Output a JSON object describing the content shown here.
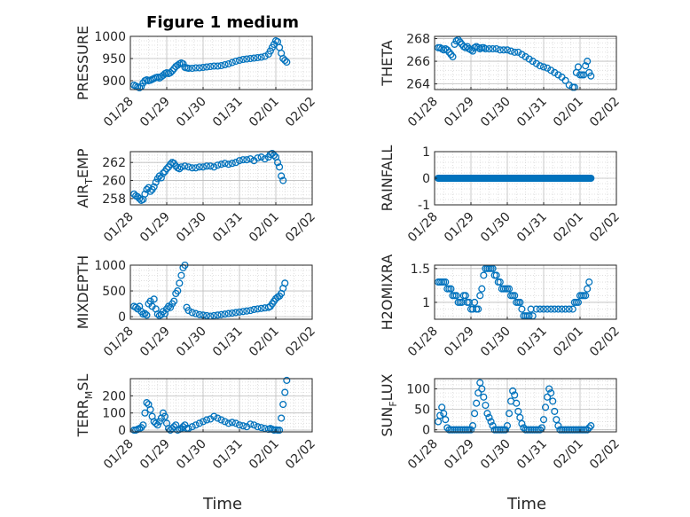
{
  "figure": {
    "title": "Figure 1 medium",
    "xlabel": "Time"
  },
  "colors": {
    "marker": "#0072BD",
    "axis": "#262626",
    "grid": "#d9d9d9",
    "background": "#ffffff"
  },
  "chart_data": [
    {
      "type": "scatter",
      "ylabel": "PRESSURE",
      "yticks": [
        900,
        950,
        1000
      ],
      "ylim": [
        880,
        1000
      ],
      "xticks": [
        "01/28",
        "01/29",
        "01/30",
        "01/31",
        "02/01",
        "02/02"
      ],
      "xlim_days": [
        0,
        5
      ],
      "x": [
        0.1,
        0.15,
        0.2,
        0.25,
        0.3,
        0.35,
        0.4,
        0.45,
        0.5,
        0.55,
        0.6,
        0.65,
        0.7,
        0.75,
        0.8,
        0.85,
        0.9,
        0.95,
        1.0,
        1.05,
        1.1,
        1.15,
        1.2,
        1.25,
        1.3,
        1.35,
        1.4,
        1.45,
        1.5,
        1.55,
        1.6,
        1.7,
        1.8,
        1.9,
        2.0,
        2.1,
        2.2,
        2.3,
        2.4,
        2.5,
        2.6,
        2.7,
        2.8,
        2.9,
        3.0,
        3.1,
        3.2,
        3.3,
        3.4,
        3.5,
        3.6,
        3.7,
        3.8,
        3.85,
        3.9,
        3.95,
        4.0,
        4.05,
        4.1,
        4.15,
        4.2,
        4.25,
        4.3
      ],
      "y": [
        890,
        888,
        886,
        884,
        887,
        895,
        900,
        902,
        900,
        901,
        903,
        905,
        907,
        908,
        906,
        909,
        912,
        916,
        918,
        916,
        918,
        922,
        927,
        932,
        935,
        938,
        940,
        938,
        930,
        929,
        928,
        928,
        929,
        929,
        930,
        931,
        932,
        933,
        933,
        934,
        936,
        938,
        941,
        944,
        946,
        948,
        949,
        950,
        951,
        952,
        953,
        955,
        960,
        967,
        975,
        982,
        990,
        988,
        975,
        962,
        950,
        946,
        942
      ]
    },
    {
      "type": "scatter",
      "ylabel": "THETA",
      "yticks": [
        264,
        266,
        268
      ],
      "ylim": [
        263.5,
        268.2
      ],
      "xticks": [
        "01/28",
        "01/29",
        "01/30",
        "01/31",
        "02/01",
        "02/02"
      ],
      "xlim_days": [
        0,
        5
      ],
      "x": [
        0.1,
        0.15,
        0.2,
        0.25,
        0.3,
        0.35,
        0.4,
        0.45,
        0.5,
        0.55,
        0.6,
        0.65,
        0.7,
        0.75,
        0.8,
        0.85,
        0.9,
        0.95,
        1.0,
        1.05,
        1.1,
        1.15,
        1.2,
        1.25,
        1.3,
        1.35,
        1.4,
        1.5,
        1.6,
        1.7,
        1.8,
        1.9,
        2.0,
        2.1,
        2.2,
        2.3,
        2.4,
        2.5,
        2.6,
        2.7,
        2.8,
        2.9,
        3.0,
        3.1,
        3.2,
        3.3,
        3.4,
        3.5,
        3.6,
        3.7,
        3.8,
        3.85,
        3.9,
        3.95,
        4.0,
        4.05,
        4.1,
        4.15,
        4.2,
        4.25,
        4.3
      ],
      "y": [
        267.2,
        267.2,
        267.1,
        267.0,
        267.1,
        267.0,
        266.8,
        266.6,
        266.4,
        267.5,
        267.8,
        267.9,
        267.7,
        267.5,
        267.3,
        267.2,
        267.3,
        267.1,
        267.0,
        266.9,
        267.2,
        267.3,
        267.2,
        267.1,
        267.2,
        267.2,
        267.1,
        267.1,
        267.1,
        267.1,
        267.0,
        267.0,
        267.0,
        266.9,
        266.8,
        266.8,
        266.6,
        266.4,
        266.2,
        266.0,
        265.8,
        265.6,
        265.5,
        265.4,
        265.2,
        265.0,
        264.8,
        264.6,
        264.3,
        263.9,
        263.7,
        263.7,
        265.0,
        265.5,
        264.8,
        264.8,
        264.8,
        265.6,
        266.0,
        265.0,
        264.7
      ]
    },
    {
      "type": "scatter",
      "ylabel": "AIR_TEMP",
      "ylabel_parts": [
        "AIR",
        "T",
        "EMP"
      ],
      "yticks": [
        258,
        260,
        262
      ],
      "ylim": [
        257.3,
        263.2
      ],
      "xticks": [
        "01/28",
        "01/29",
        "01/30",
        "01/31",
        "02/01",
        "02/02"
      ],
      "xlim_days": [
        0,
        5
      ],
      "x": [
        0.1,
        0.15,
        0.2,
        0.25,
        0.3,
        0.35,
        0.4,
        0.45,
        0.5,
        0.55,
        0.6,
        0.65,
        0.7,
        0.75,
        0.8,
        0.85,
        0.9,
        0.95,
        1.0,
        1.05,
        1.1,
        1.15,
        1.2,
        1.25,
        1.3,
        1.35,
        1.4,
        1.5,
        1.6,
        1.7,
        1.8,
        1.9,
        2.0,
        2.1,
        2.2,
        2.3,
        2.4,
        2.5,
        2.6,
        2.7,
        2.8,
        2.9,
        3.0,
        3.1,
        3.2,
        3.3,
        3.4,
        3.5,
        3.6,
        3.7,
        3.8,
        3.85,
        3.9,
        3.95,
        4.0,
        4.05,
        4.1,
        4.15,
        4.2
      ],
      "y": [
        258.5,
        258.3,
        258.2,
        258.0,
        257.8,
        257.9,
        258.5,
        259.0,
        259.2,
        258.8,
        259.0,
        259.3,
        259.8,
        260.2,
        260.5,
        260.3,
        260.8,
        261.0,
        261.3,
        261.5,
        261.8,
        262.0,
        261.9,
        261.6,
        261.4,
        261.3,
        261.5,
        261.6,
        261.5,
        261.4,
        261.4,
        261.5,
        261.5,
        261.6,
        261.6,
        261.5,
        261.7,
        261.8,
        261.9,
        261.8,
        261.9,
        262.0,
        262.2,
        262.3,
        262.3,
        262.4,
        262.2,
        262.5,
        262.6,
        262.4,
        262.6,
        262.9,
        263.0,
        262.8,
        262.6,
        262.0,
        261.5,
        260.5,
        260.0
      ]
    },
    {
      "type": "scatter",
      "ylabel": "RAINFALL",
      "yticks": [
        -1,
        0,
        1
      ],
      "ylim": [
        -1,
        1
      ],
      "xticks": [
        "01/28",
        "01/29",
        "01/30",
        "01/31",
        "02/01",
        "02/02"
      ],
      "xlim_days": [
        0,
        5
      ],
      "x_range": [
        0.1,
        4.3
      ],
      "constant": 0
    },
    {
      "type": "scatter",
      "ylabel": "MIXDEPTH",
      "yticks": [
        0,
        500,
        1000
      ],
      "ylim": [
        -50,
        1000
      ],
      "xticks": [
        "01/28",
        "01/29",
        "01/30",
        "01/31",
        "02/01",
        "02/02"
      ],
      "xlim_days": [
        0,
        5
      ],
      "x": [
        0.1,
        0.15,
        0.2,
        0.25,
        0.3,
        0.35,
        0.4,
        0.45,
        0.5,
        0.55,
        0.6,
        0.65,
        0.7,
        0.75,
        0.8,
        0.85,
        0.9,
        0.95,
        1.0,
        1.05,
        1.1,
        1.15,
        1.2,
        1.25,
        1.3,
        1.35,
        1.4,
        1.45,
        1.5,
        1.55,
        1.6,
        1.7,
        1.8,
        1.9,
        2.0,
        2.1,
        2.2,
        2.3,
        2.4,
        2.5,
        2.6,
        2.7,
        2.8,
        2.9,
        3.0,
        3.1,
        3.2,
        3.3,
        3.4,
        3.5,
        3.6,
        3.7,
        3.8,
        3.85,
        3.9,
        3.95,
        4.0,
        4.05,
        4.1,
        4.15,
        4.2,
        4.25
      ],
      "y": [
        200,
        180,
        150,
        200,
        100,
        50,
        60,
        30,
        250,
        300,
        200,
        340,
        150,
        50,
        20,
        40,
        100,
        60,
        150,
        200,
        180,
        250,
        300,
        450,
        500,
        650,
        800,
        950,
        1000,
        180,
        120,
        80,
        60,
        40,
        30,
        20,
        10,
        20,
        30,
        40,
        50,
        60,
        70,
        80,
        90,
        100,
        110,
        120,
        140,
        150,
        160,
        170,
        180,
        200,
        250,
        300,
        350,
        380,
        400,
        450,
        550,
        650
      ]
    },
    {
      "type": "scatter",
      "ylabel": "H2OMIXRA",
      "yticks": [
        1,
        1.5
      ],
      "ylim": [
        0.75,
        1.55
      ],
      "xticks": [
        "01/28",
        "01/29",
        "01/30",
        "01/31",
        "02/01",
        "02/02"
      ],
      "xlim_days": [
        0,
        5
      ],
      "x": [
        0.1,
        0.15,
        0.2,
        0.25,
        0.3,
        0.35,
        0.4,
        0.45,
        0.5,
        0.55,
        0.6,
        0.65,
        0.7,
        0.75,
        0.8,
        0.85,
        0.9,
        0.95,
        1.0,
        1.05,
        1.1,
        1.15,
        1.2,
        1.25,
        1.3,
        1.35,
        1.4,
        1.45,
        1.5,
        1.55,
        1.6,
        1.65,
        1.7,
        1.75,
        1.8,
        1.85,
        1.9,
        1.95,
        2.0,
        2.05,
        2.1,
        2.15,
        2.2,
        2.25,
        2.3,
        2.35,
        2.4,
        2.45,
        2.5,
        2.55,
        2.6,
        2.65,
        2.7,
        2.8,
        2.9,
        3.0,
        3.1,
        3.2,
        3.3,
        3.4,
        3.5,
        3.6,
        3.7,
        3.8,
        3.85,
        3.9,
        3.95,
        4.0,
        4.05,
        4.1,
        4.15,
        4.2,
        4.25
      ],
      "y": [
        1.3,
        1.3,
        1.3,
        1.3,
        1.3,
        1.2,
        1.2,
        1.2,
        1.1,
        1.1,
        1.1,
        1.0,
        1.0,
        1.0,
        1.1,
        1.1,
        1.0,
        1.0,
        0.9,
        0.9,
        1.0,
        0.9,
        0.9,
        1.1,
        1.2,
        1.4,
        1.5,
        1.5,
        1.5,
        1.5,
        1.5,
        1.4,
        1.4,
        1.3,
        1.3,
        1.2,
        1.2,
        1.2,
        1.2,
        1.2,
        1.1,
        1.1,
        1.1,
        1.0,
        1.0,
        1.0,
        0.9,
        0.8,
        0.8,
        0.8,
        0.8,
        0.9,
        0.8,
        0.9,
        0.9,
        0.9,
        0.9,
        0.9,
        0.9,
        0.9,
        0.9,
        0.9,
        0.9,
        0.9,
        1.0,
        1.0,
        1.0,
        1.1,
        1.1,
        1.1,
        1.1,
        1.2,
        1.3
      ]
    },
    {
      "type": "scatter",
      "ylabel": "TERR_MSL",
      "ylabel_parts": [
        "TERR",
        "M",
        "SL"
      ],
      "yticks": [
        0,
        100,
        200
      ],
      "ylim": [
        -10,
        300
      ],
      "xticks": [
        "01/28",
        "01/29",
        "01/30",
        "01/31",
        "02/01",
        "02/02"
      ],
      "xlim_days": [
        0,
        5
      ],
      "x": [
        0.1,
        0.15,
        0.2,
        0.25,
        0.3,
        0.35,
        0.4,
        0.45,
        0.5,
        0.55,
        0.6,
        0.65,
        0.7,
        0.75,
        0.8,
        0.85,
        0.9,
        0.95,
        1.0,
        1.05,
        1.1,
        1.15,
        1.2,
        1.25,
        1.3,
        1.35,
        1.4,
        1.45,
        1.5,
        1.55,
        1.6,
        1.7,
        1.8,
        1.9,
        2.0,
        2.1,
        2.2,
        2.3,
        2.4,
        2.5,
        2.6,
        2.7,
        2.8,
        2.9,
        3.0,
        3.1,
        3.2,
        3.3,
        3.4,
        3.5,
        3.6,
        3.7,
        3.8,
        3.85,
        3.9,
        3.95,
        4.0,
        4.05,
        4.1,
        4.15,
        4.2,
        4.25,
        4.3
      ],
      "y": [
        0,
        0,
        5,
        10,
        15,
        30,
        100,
        160,
        150,
        120,
        80,
        50,
        40,
        30,
        50,
        70,
        100,
        80,
        40,
        10,
        0,
        10,
        20,
        30,
        0,
        5,
        10,
        20,
        30,
        10,
        10,
        20,
        30,
        40,
        50,
        60,
        65,
        80,
        70,
        60,
        50,
        40,
        45,
        40,
        30,
        25,
        20,
        35,
        30,
        20,
        15,
        10,
        5,
        10,
        5,
        0,
        2,
        0,
        0,
        70,
        150,
        220,
        290
      ]
    },
    {
      "type": "scatter",
      "ylabel": "SUN_FLUX",
      "ylabel_parts": [
        "SUN",
        "F",
        "LUX"
      ],
      "yticks": [
        0,
        50,
        100
      ],
      "ylim": [
        -5,
        125
      ],
      "xticks": [
        "01/28",
        "01/29",
        "01/30",
        "01/31",
        "02/01",
        "02/02"
      ],
      "xlim_days": [
        0,
        5
      ],
      "x": [
        0.1,
        0.15,
        0.2,
        0.25,
        0.3,
        0.35,
        0.4,
        0.45,
        0.5,
        0.55,
        0.6,
        0.65,
        0.7,
        0.75,
        0.8,
        0.85,
        0.9,
        0.95,
        1.0,
        1.05,
        1.1,
        1.15,
        1.2,
        1.25,
        1.3,
        1.35,
        1.4,
        1.45,
        1.5,
        1.55,
        1.6,
        1.65,
        1.7,
        1.75,
        1.8,
        1.85,
        1.9,
        1.95,
        2.0,
        2.05,
        2.1,
        2.15,
        2.2,
        2.25,
        2.3,
        2.35,
        2.4,
        2.45,
        2.5,
        2.55,
        2.6,
        2.65,
        2.7,
        2.75,
        2.8,
        2.85,
        2.9,
        2.95,
        3.0,
        3.05,
        3.1,
        3.15,
        3.2,
        3.25,
        3.3,
        3.35,
        3.4,
        3.45,
        3.5,
        3.55,
        3.6,
        3.65,
        3.7,
        3.75,
        3.8,
        3.85,
        3.9,
        3.95,
        4.0,
        4.05,
        4.1,
        4.15,
        4.2,
        4.25,
        4.3
      ],
      "y": [
        20,
        35,
        55,
        40,
        25,
        5,
        0,
        0,
        0,
        0,
        0,
        0,
        0,
        0,
        0,
        0,
        0,
        0,
        0,
        10,
        40,
        65,
        90,
        115,
        100,
        80,
        60,
        40,
        30,
        20,
        10,
        0,
        0,
        0,
        0,
        0,
        0,
        0,
        10,
        40,
        70,
        95,
        85,
        65,
        45,
        30,
        15,
        5,
        0,
        0,
        0,
        0,
        0,
        0,
        0,
        0,
        0,
        5,
        25,
        55,
        80,
        100,
        90,
        70,
        45,
        25,
        10,
        0,
        0,
        0,
        0,
        0,
        0,
        0,
        0,
        0,
        0,
        0,
        0,
        0,
        0,
        0,
        0,
        5,
        10
      ]
    }
  ]
}
